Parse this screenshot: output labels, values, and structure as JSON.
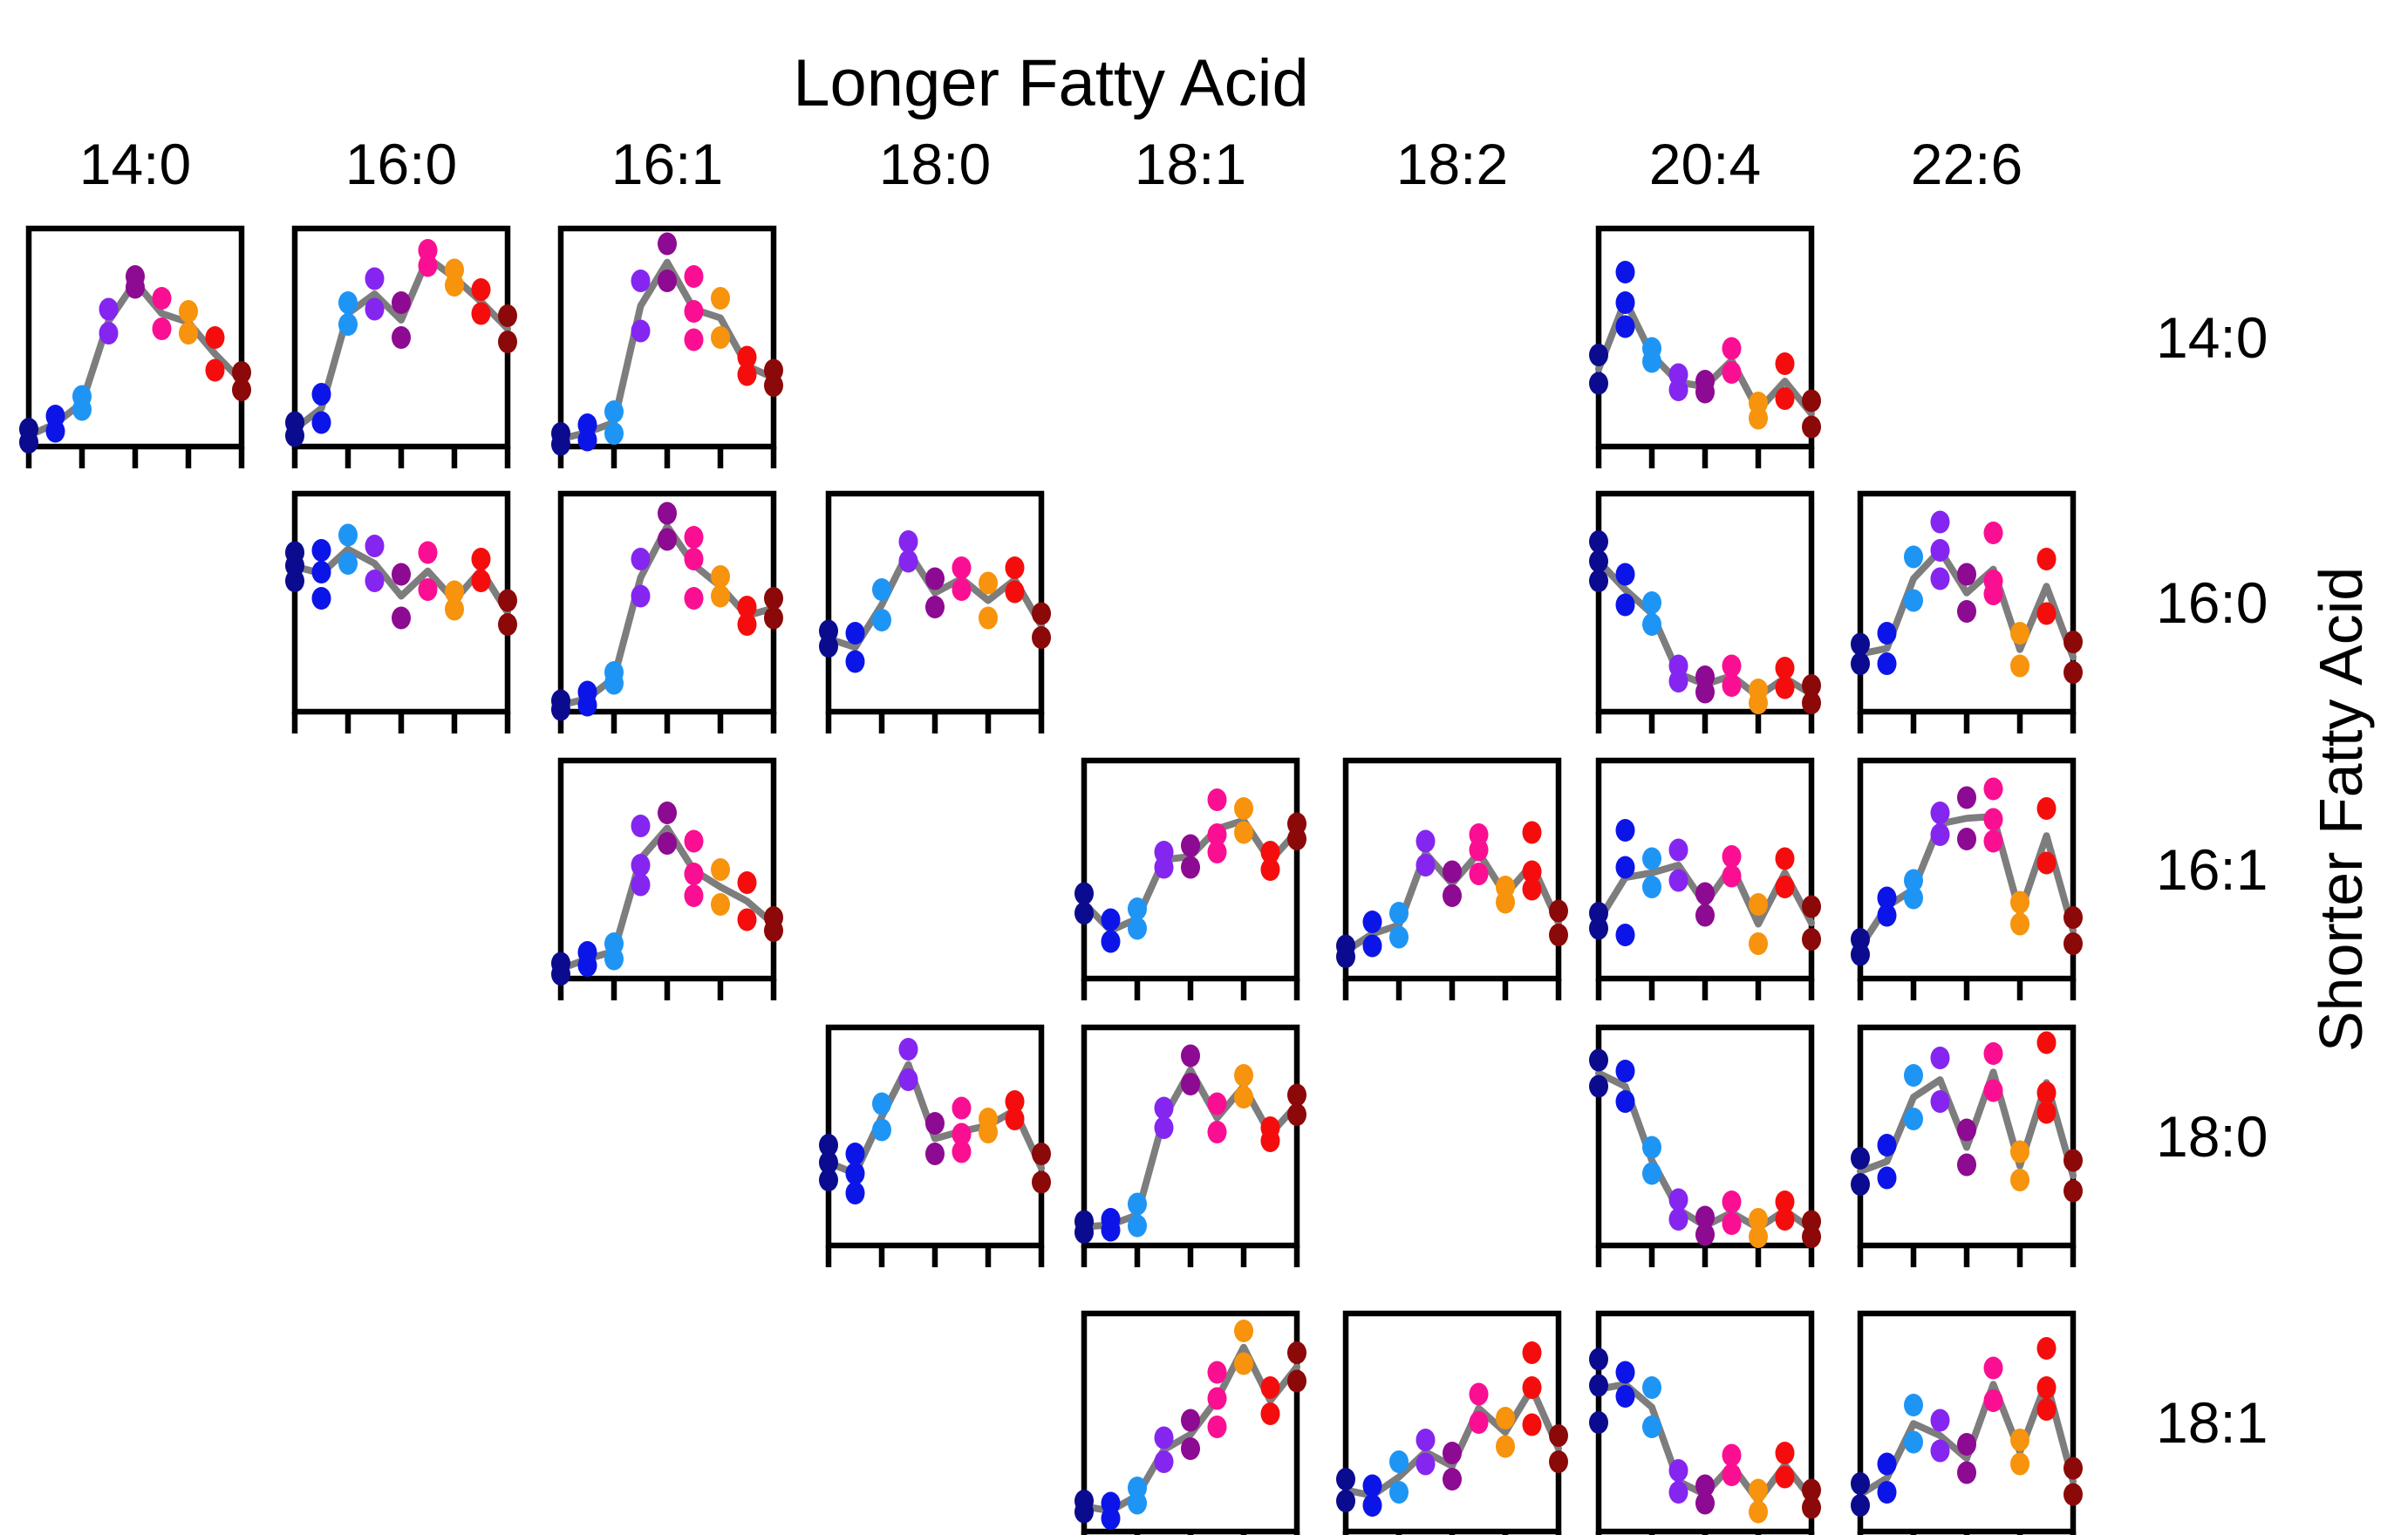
{
  "chart_data": {
    "type": "scatter",
    "title": "Longer Fatty Acid",
    "row_axis_title": "Shorter Fatty Acid",
    "columns": [
      "14:0",
      "16:0",
      "16:1",
      "18:0",
      "18:1",
      "18:2",
      "20:4",
      "22:6"
    ],
    "rows": [
      "14:0",
      "16:0",
      "16:1",
      "18:0",
      "18:1"
    ],
    "x_ticks_per_subplot": 5,
    "y_axis": {
      "range": [
        0,
        1
      ],
      "tick_labels": "none"
    },
    "mean_line_color": "#7d7d7d",
    "frame_color": "#000000",
    "series_colors": [
      {
        "name": "navy",
        "hex": "#0b0b8f"
      },
      {
        "name": "blue",
        "hex": "#0c15e8"
      },
      {
        "name": "dodger-blue",
        "hex": "#1e95f5"
      },
      {
        "name": "blue-violet",
        "hex": "#8426f0"
      },
      {
        "name": "purple",
        "hex": "#8d0a92"
      },
      {
        "name": "deep-pink",
        "hex": "#fa0f92"
      },
      {
        "name": "orange",
        "hex": "#f7930c"
      },
      {
        "name": "red",
        "hex": "#f50d0d"
      },
      {
        "name": "dark-red",
        "hex": "#8c0909"
      }
    ],
    "cells": [
      {
        "row": "14:0",
        "col": "14:0",
        "groups": [
          [
            0.02,
            0.08
          ],
          [
            0.07,
            0.14
          ],
          [
            0.17,
            0.23
          ],
          [
            0.52,
            0.63
          ],
          [
            0.73,
            0.78
          ],
          [
            0.54,
            0.68
          ],
          [
            0.52,
            0.62
          ],
          [
            0.35,
            0.5
          ],
          [
            0.26,
            0.34
          ]
        ]
      },
      {
        "row": "14:0",
        "col": "16:0",
        "groups": [
          [
            0.05,
            0.11
          ],
          [
            0.11,
            0.24
          ],
          [
            0.56,
            0.66
          ],
          [
            0.63,
            0.77
          ],
          [
            0.5,
            0.66
          ],
          [
            0.83,
            0.9
          ],
          [
            0.74,
            0.81
          ],
          [
            0.61,
            0.72
          ],
          [
            0.48,
            0.6
          ]
        ]
      },
      {
        "row": "14:0",
        "col": "16:1",
        "groups": [
          [
            0.01,
            0.06
          ],
          [
            0.03,
            0.1
          ],
          [
            0.06,
            0.16
          ],
          [
            0.53,
            0.76
          ],
          [
            0.76,
            0.93
          ],
          [
            0.49,
            0.62,
            0.78
          ],
          [
            0.5,
            0.68
          ],
          [
            0.33,
            0.41
          ],
          [
            0.28,
            0.35
          ]
        ]
      },
      {
        "row": "14:0",
        "col": "20:4",
        "groups": [
          [
            0.29,
            0.42
          ],
          [
            0.55,
            0.66,
            0.8
          ],
          [
            0.39,
            0.45
          ],
          [
            0.26,
            0.33
          ],
          [
            0.25,
            0.3
          ],
          [
            0.34,
            0.45
          ],
          [
            0.13,
            0.2
          ],
          [
            0.22,
            0.38
          ],
          [
            0.09,
            0.21
          ]
        ]
      },
      {
        "row": "16:0",
        "col": "16:0",
        "groups": [
          [
            0.6,
            0.67,
            0.73
          ],
          [
            0.52,
            0.64,
            0.74
          ],
          [
            0.68,
            0.81
          ],
          [
            0.6,
            0.76
          ],
          [
            0.43,
            0.63
          ],
          [
            0.56,
            0.73
          ],
          [
            0.47,
            0.55
          ],
          [
            0.6,
            0.7
          ],
          [
            0.4,
            0.51
          ]
        ]
      },
      {
        "row": "16:0",
        "col": "16:1",
        "groups": [
          [
            0.01,
            0.05
          ],
          [
            0.03,
            0.09
          ],
          [
            0.13,
            0.18
          ],
          [
            0.53,
            0.7
          ],
          [
            0.79,
            0.91
          ],
          [
            0.52,
            0.7,
            0.8
          ],
          [
            0.53,
            0.62
          ],
          [
            0.4,
            0.48
          ],
          [
            0.43,
            0.52
          ]
        ]
      },
      {
        "row": "16:0",
        "col": "18:0",
        "groups": [
          [
            0.3,
            0.37
          ],
          [
            0.23,
            0.36
          ],
          [
            0.42,
            0.56
          ],
          [
            0.69,
            0.78
          ],
          [
            0.48,
            0.61
          ],
          [
            0.56,
            0.66
          ],
          [
            0.43,
            0.59
          ],
          [
            0.55,
            0.66
          ],
          [
            0.34,
            0.45
          ]
        ]
      },
      {
        "row": "16:0",
        "col": "20:4",
        "groups": [
          [
            0.6,
            0.69,
            0.78
          ],
          [
            0.49,
            0.63
          ],
          [
            0.4,
            0.5
          ],
          [
            0.14,
            0.21
          ],
          [
            0.09,
            0.16
          ],
          [
            0.12,
            0.21
          ],
          [
            0.04,
            0.1
          ],
          [
            0.11,
            0.2
          ],
          [
            0.04,
            0.12
          ]
        ]
      },
      {
        "row": "16:0",
        "col": "22:6",
        "groups": [
          [
            0.22,
            0.31
          ],
          [
            0.22,
            0.36
          ],
          [
            0.51,
            0.71
          ],
          [
            0.61,
            0.74,
            0.87
          ],
          [
            0.46,
            0.63
          ],
          [
            0.54,
            0.6,
            0.82
          ],
          [
            0.21,
            0.36
          ],
          [
            0.45,
            0.7
          ],
          [
            0.18,
            0.32
          ]
        ]
      },
      {
        "row": "16:1",
        "col": "16:1",
        "groups": [
          [
            0.02,
            0.07
          ],
          [
            0.06,
            0.12
          ],
          [
            0.09,
            0.16
          ],
          [
            0.43,
            0.52,
            0.7
          ],
          [
            0.62,
            0.76
          ],
          [
            0.38,
            0.48,
            0.63
          ],
          [
            0.34,
            0.5
          ],
          [
            0.27,
            0.44
          ],
          [
            0.22,
            0.28
          ]
        ]
      },
      {
        "row": "16:1",
        "col": "18:1",
        "groups": [
          [
            0.3,
            0.39
          ],
          [
            0.17,
            0.27
          ],
          [
            0.23,
            0.32
          ],
          [
            0.51,
            0.58
          ],
          [
            0.51,
            0.61
          ],
          [
            0.58,
            0.66,
            0.82
          ],
          [
            0.67,
            0.78
          ],
          [
            0.5,
            0.58
          ],
          [
            0.64,
            0.71
          ]
        ]
      },
      {
        "row": "16:1",
        "col": "18:2",
        "groups": [
          [
            0.1,
            0.15
          ],
          [
            0.15,
            0.26
          ],
          [
            0.19,
            0.3
          ],
          [
            0.52,
            0.63
          ],
          [
            0.38,
            0.49
          ],
          [
            0.48,
            0.59,
            0.66
          ],
          [
            0.35,
            0.42
          ],
          [
            0.41,
            0.49,
            0.67
          ],
          [
            0.2,
            0.31
          ]
        ]
      },
      {
        "row": "16:1",
        "col": "20:4",
        "groups": [
          [
            0.23,
            0.3
          ],
          [
            0.2,
            0.51,
            0.68
          ],
          [
            0.42,
            0.55
          ],
          [
            0.45,
            0.59
          ],
          [
            0.29,
            0.39
          ],
          [
            0.47,
            0.56
          ],
          [
            0.16,
            0.34
          ],
          [
            0.42,
            0.55
          ],
          [
            0.18,
            0.33
          ]
        ]
      },
      {
        "row": "16:1",
        "col": "22:6",
        "groups": [
          [
            0.11,
            0.18
          ],
          [
            0.29,
            0.37
          ],
          [
            0.37,
            0.45
          ],
          [
            0.66,
            0.76
          ],
          [
            0.64,
            0.83
          ],
          [
            0.63,
            0.73,
            0.87
          ],
          [
            0.25,
            0.35
          ],
          [
            0.53,
            0.78
          ],
          [
            0.16,
            0.28
          ]
        ]
      },
      {
        "row": "18:0",
        "col": "18:0",
        "groups": [
          [
            0.3,
            0.38,
            0.46
          ],
          [
            0.24,
            0.33,
            0.42
          ],
          [
            0.53,
            0.65
          ],
          [
            0.76,
            0.9
          ],
          [
            0.42,
            0.56
          ],
          [
            0.43,
            0.51,
            0.63
          ],
          [
            0.52,
            0.58
          ],
          [
            0.58,
            0.66
          ],
          [
            0.29,
            0.42
          ]
        ]
      },
      {
        "row": "18:0",
        "col": "18:1",
        "groups": [
          [
            0.06,
            0.11
          ],
          [
            0.07,
            0.12
          ],
          [
            0.09,
            0.19
          ],
          [
            0.54,
            0.63
          ],
          [
            0.74,
            0.87
          ],
          [
            0.52,
            0.65
          ],
          [
            0.68,
            0.78
          ],
          [
            0.48,
            0.54
          ],
          [
            0.6,
            0.69
          ]
        ]
      },
      {
        "row": "18:0",
        "col": "20:4",
        "groups": [
          [
            0.73,
            0.85
          ],
          [
            0.66,
            0.8
          ],
          [
            0.33,
            0.45
          ],
          [
            0.12,
            0.21
          ],
          [
            0.05,
            0.13
          ],
          [
            0.1,
            0.2
          ],
          [
            0.04,
            0.12
          ],
          [
            0.12,
            0.2
          ],
          [
            0.04,
            0.11
          ]
        ]
      },
      {
        "row": "18:0",
        "col": "22:6",
        "groups": [
          [
            0.28,
            0.4
          ],
          [
            0.31,
            0.46
          ],
          [
            0.58,
            0.78
          ],
          [
            0.66,
            0.86
          ],
          [
            0.37,
            0.53
          ],
          [
            0.71,
            0.88
          ],
          [
            0.3,
            0.43
          ],
          [
            0.61,
            0.7,
            0.93
          ],
          [
            0.25,
            0.39
          ]
        ]
      },
      {
        "row": "18:1",
        "col": "18:1",
        "groups": [
          [
            0.09,
            0.14
          ],
          [
            0.06,
            0.13
          ],
          [
            0.13,
            0.2
          ],
          [
            0.32,
            0.43
          ],
          [
            0.38,
            0.51
          ],
          [
            0.48,
            0.61,
            0.73
          ],
          [
            0.77,
            0.92
          ],
          [
            0.54,
            0.66
          ],
          [
            0.69,
            0.82
          ]
        ]
      },
      {
        "row": "18:1",
        "col": "18:2",
        "groups": [
          [
            0.14,
            0.24
          ],
          [
            0.12,
            0.21
          ],
          [
            0.18,
            0.32
          ],
          [
            0.31,
            0.42
          ],
          [
            0.24,
            0.36
          ],
          [
            0.5,
            0.63
          ],
          [
            0.39,
            0.52
          ],
          [
            0.49,
            0.66,
            0.82
          ],
          [
            0.32,
            0.44
          ]
        ]
      },
      {
        "row": "18:1",
        "col": "20:4",
        "groups": [
          [
            0.5,
            0.67,
            0.79
          ],
          [
            0.62,
            0.73
          ],
          [
            0.48,
            0.66
          ],
          [
            0.18,
            0.28
          ],
          [
            0.13,
            0.21
          ],
          [
            0.26,
            0.35
          ],
          [
            0.09,
            0.19
          ],
          [
            0.25,
            0.36
          ],
          [
            0.11,
            0.19
          ]
        ]
      },
      {
        "row": "18:1",
        "col": "22:6",
        "groups": [
          [
            0.12,
            0.22
          ],
          [
            0.18,
            0.31
          ],
          [
            0.41,
            0.58
          ],
          [
            0.37,
            0.51
          ],
          [
            0.27,
            0.4
          ],
          [
            0.6,
            0.75
          ],
          [
            0.31,
            0.42
          ],
          [
            0.56,
            0.66,
            0.84
          ],
          [
            0.17,
            0.29
          ]
        ]
      }
    ]
  }
}
